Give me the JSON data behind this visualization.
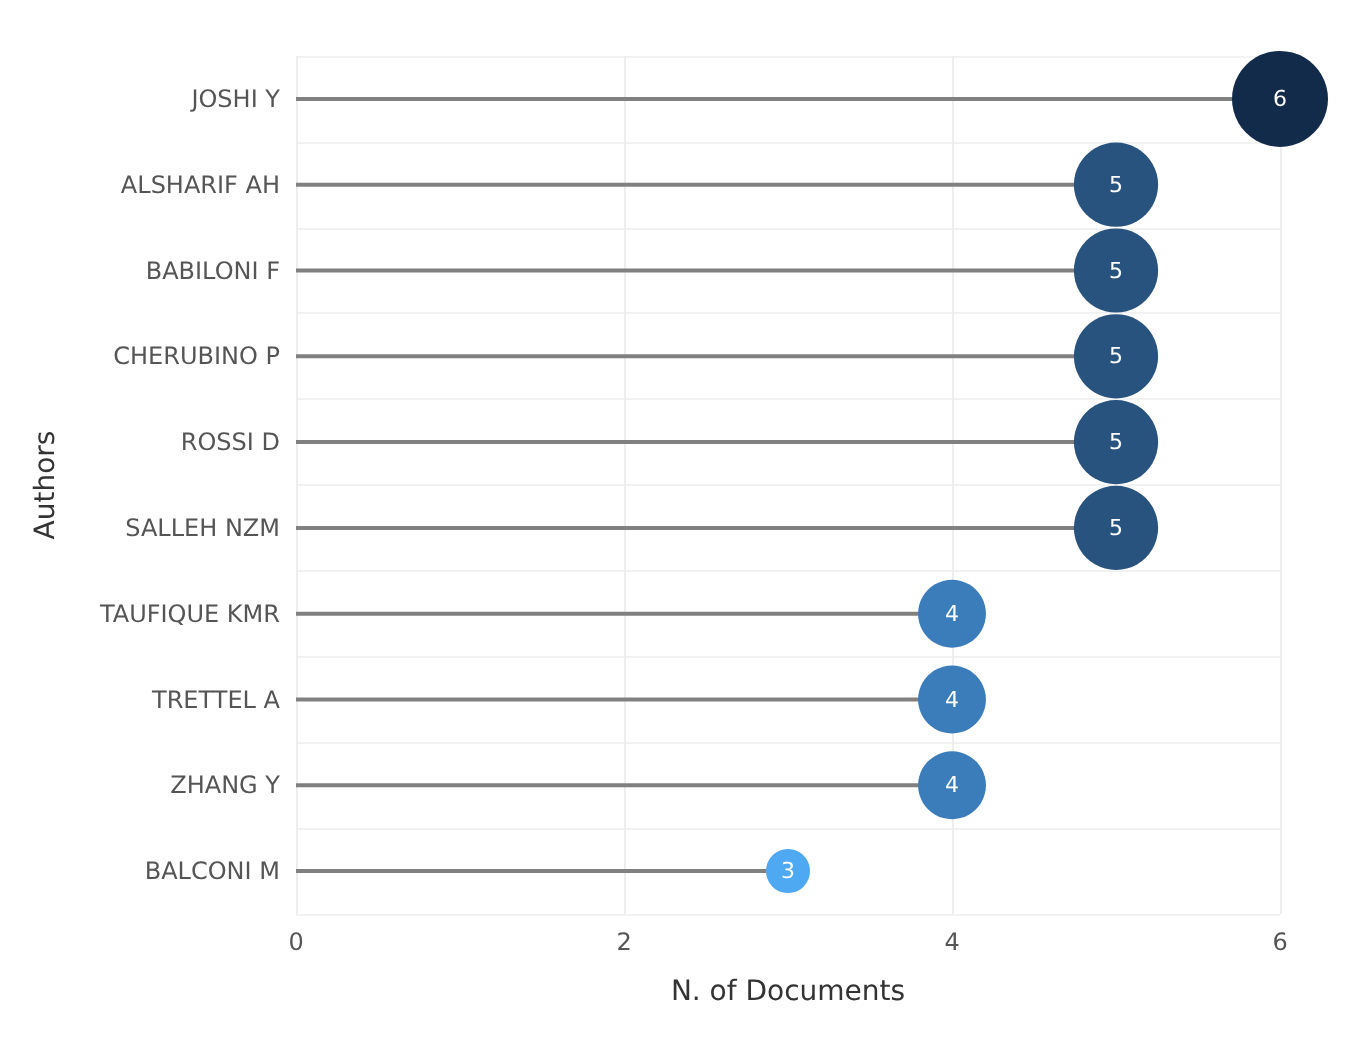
{
  "chart_data": {
    "type": "lollipop",
    "orientation": "horizontal",
    "xlabel": "N. of Documents",
    "ylabel": "Authors",
    "categories": [
      "JOSHI Y",
      "ALSHARIF AH",
      "BABILONI F",
      "CHERUBINO P",
      "ROSSI D",
      "SALLEH NZM",
      "TAUFIQUE KMR",
      "TRETTEL A",
      "ZHANG Y",
      "BALCONI M"
    ],
    "values": [
      6,
      5,
      5,
      5,
      5,
      5,
      4,
      4,
      4,
      3
    ],
    "colors": [
      "#132b4a",
      "#29537f",
      "#29537f",
      "#29537f",
      "#29537f",
      "#29537f",
      "#3b7cbb",
      "#3b7cbb",
      "#3b7cbb",
      "#4ea8f2"
    ],
    "sizes": [
      1,
      0.77,
      0.77,
      0.77,
      0.77,
      0.77,
      0.5,
      0.5,
      0.5,
      0.21
    ],
    "xlim": [
      0,
      6
    ],
    "xticks": [
      0,
      2,
      4,
      6
    ],
    "grid": true,
    "data_labels": true
  }
}
